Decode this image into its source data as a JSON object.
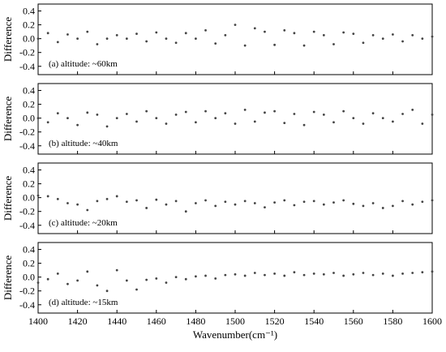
{
  "chart_data": [
    {
      "type": "scatter",
      "ylabel": "Difference",
      "annotation": "(a) altitude: ~60km",
      "color": "#444444",
      "show_xtick_labels": false,
      "xlim": [
        1400,
        1600
      ],
      "xticks": [
        1400,
        1420,
        1440,
        1460,
        1480,
        1500,
        1520,
        1540,
        1560,
        1580,
        1600
      ],
      "ylim": [
        -0.52,
        0.5
      ],
      "yticks": [
        -0.4,
        -0.2,
        {
          "value": 0,
          "label": "0.0"
        },
        0.2,
        0.4
      ],
      "x": [
        1400,
        1405,
        1410,
        1415,
        1420,
        1425,
        1430,
        1435,
        1440,
        1445,
        1450,
        1455,
        1460,
        1465,
        1470,
        1475,
        1480,
        1485,
        1490,
        1495,
        1500,
        1505,
        1510,
        1515,
        1520,
        1525,
        1530,
        1535,
        1540,
        1545,
        1550,
        1555,
        1560,
        1565,
        1570,
        1575,
        1580,
        1585,
        1590,
        1595,
        1600
      ],
      "values": [
        0,
        0.08,
        -0.05,
        0.06,
        0,
        0.1,
        -0.08,
        0,
        0.05,
        0,
        0.07,
        -0.04,
        0.09,
        0,
        -0.06,
        0.08,
        0,
        0.12,
        -0.07,
        0.05,
        0.2,
        -0.1,
        0.15,
        0.1,
        -0.09,
        0.12,
        0.08,
        -0.1,
        0.1,
        0.05,
        -0.08,
        0.09,
        0.07,
        -0.06,
        0.05,
        0,
        0.06,
        -0.04,
        0.05,
        0,
        0.03
      ]
    },
    {
      "type": "scatter",
      "ylabel": "Difference",
      "annotation": "(b) altitude: ~40km",
      "color": "#444444",
      "show_xtick_labels": false,
      "xlim": [
        1400,
        1600
      ],
      "xticks": [
        1400,
        1420,
        1440,
        1460,
        1480,
        1500,
        1520,
        1540,
        1560,
        1580,
        1600
      ],
      "ylim": [
        -0.52,
        0.5
      ],
      "yticks": [
        -0.4,
        -0.2,
        {
          "value": 0,
          "label": "0.0"
        },
        0.2,
        0.4
      ],
      "x": [
        1400,
        1405,
        1410,
        1415,
        1420,
        1425,
        1430,
        1435,
        1440,
        1445,
        1450,
        1455,
        1460,
        1465,
        1470,
        1475,
        1480,
        1485,
        1490,
        1495,
        1500,
        1505,
        1510,
        1515,
        1520,
        1525,
        1530,
        1535,
        1540,
        1545,
        1550,
        1555,
        1560,
        1565,
        1570,
        1575,
        1580,
        1585,
        1590,
        1595,
        1600
      ],
      "values": [
        0,
        -0.06,
        0.07,
        0,
        -0.1,
        0.08,
        0.05,
        -0.12,
        0,
        0.06,
        -0.05,
        0.1,
        0,
        -0.08,
        0.05,
        0.09,
        -0.06,
        0.1,
        0,
        0.07,
        -0.08,
        0.12,
        -0.05,
        0.08,
        0.1,
        -0.07,
        0.06,
        -0.1,
        0.09,
        0.05,
        -0.06,
        0.1,
        0,
        -0.08,
        0.07,
        0,
        -0.05,
        0.06,
        0.12,
        -0.08,
        0.05
      ]
    },
    {
      "type": "scatter",
      "ylabel": "Difference",
      "annotation": "(c) altitude: ~20km",
      "color": "#444444",
      "show_xtick_labels": false,
      "xlim": [
        1400,
        1600
      ],
      "xticks": [
        1400,
        1420,
        1440,
        1460,
        1480,
        1500,
        1520,
        1540,
        1560,
        1580,
        1600
      ],
      "ylim": [
        -0.52,
        0.5
      ],
      "yticks": [
        -0.4,
        -0.2,
        {
          "value": 0,
          "label": "0.0"
        },
        0.2,
        0.4
      ],
      "x": [
        1400,
        1405,
        1410,
        1415,
        1420,
        1425,
        1430,
        1435,
        1440,
        1445,
        1450,
        1455,
        1460,
        1465,
        1470,
        1475,
        1480,
        1485,
        1490,
        1495,
        1500,
        1505,
        1510,
        1515,
        1520,
        1525,
        1530,
        1535,
        1540,
        1545,
        1550,
        1555,
        1560,
        1565,
        1570,
        1575,
        1580,
        1585,
        1590,
        1595,
        1600
      ],
      "values": [
        0.03,
        0.02,
        -0.02,
        -0.08,
        -0.1,
        -0.18,
        -0.05,
        -0.02,
        0.02,
        -0.06,
        -0.04,
        -0.15,
        -0.03,
        -0.1,
        -0.05,
        -0.2,
        -0.08,
        -0.04,
        -0.12,
        -0.06,
        -0.1,
        -0.05,
        -0.08,
        -0.14,
        -0.07,
        -0.04,
        -0.11,
        -0.06,
        -0.05,
        -0.1,
        -0.07,
        -0.04,
        -0.09,
        -0.12,
        -0.08,
        -0.15,
        -0.12,
        -0.05,
        -0.1,
        -0.06,
        -0.04
      ]
    },
    {
      "type": "scatter",
      "ylabel": "Difference",
      "annotation": "(d) altitude: ~15km",
      "color": "#444444",
      "show_xtick_labels": true,
      "xlabel": "Wavenumber(cm⁻¹)",
      "xlim": [
        1400,
        1600
      ],
      "xticks": [
        1400,
        1420,
        1440,
        1460,
        1480,
        1500,
        1520,
        1540,
        1560,
        1580,
        1600
      ],
      "ylim": [
        -0.52,
        0.5
      ],
      "yticks": [
        -0.4,
        -0.2,
        {
          "value": 0,
          "label": "0.0"
        },
        0.2,
        0.4
      ],
      "x": [
        1400,
        1405,
        1410,
        1415,
        1420,
        1425,
        1430,
        1435,
        1440,
        1445,
        1450,
        1455,
        1460,
        1465,
        1470,
        1475,
        1480,
        1485,
        1490,
        1495,
        1500,
        1505,
        1510,
        1515,
        1520,
        1525,
        1530,
        1535,
        1540,
        1545,
        1550,
        1555,
        1560,
        1565,
        1570,
        1575,
        1580,
        1585,
        1590,
        1595,
        1600
      ],
      "values": [
        -0.08,
        -0.03,
        0.05,
        -0.1,
        -0.05,
        0.08,
        -0.12,
        -0.2,
        0.1,
        -0.05,
        -0.18,
        -0.04,
        -0.02,
        -0.08,
        0,
        -0.03,
        0.01,
        0.02,
        -0.02,
        0.03,
        0.04,
        0.02,
        0.06,
        0.03,
        0.05,
        0.02,
        0.07,
        0.03,
        0.05,
        0.04,
        0.06,
        0.02,
        0.04,
        0.06,
        0.03,
        0.05,
        0.02,
        0.05,
        0.06,
        0.07,
        0.08
      ]
    }
  ]
}
